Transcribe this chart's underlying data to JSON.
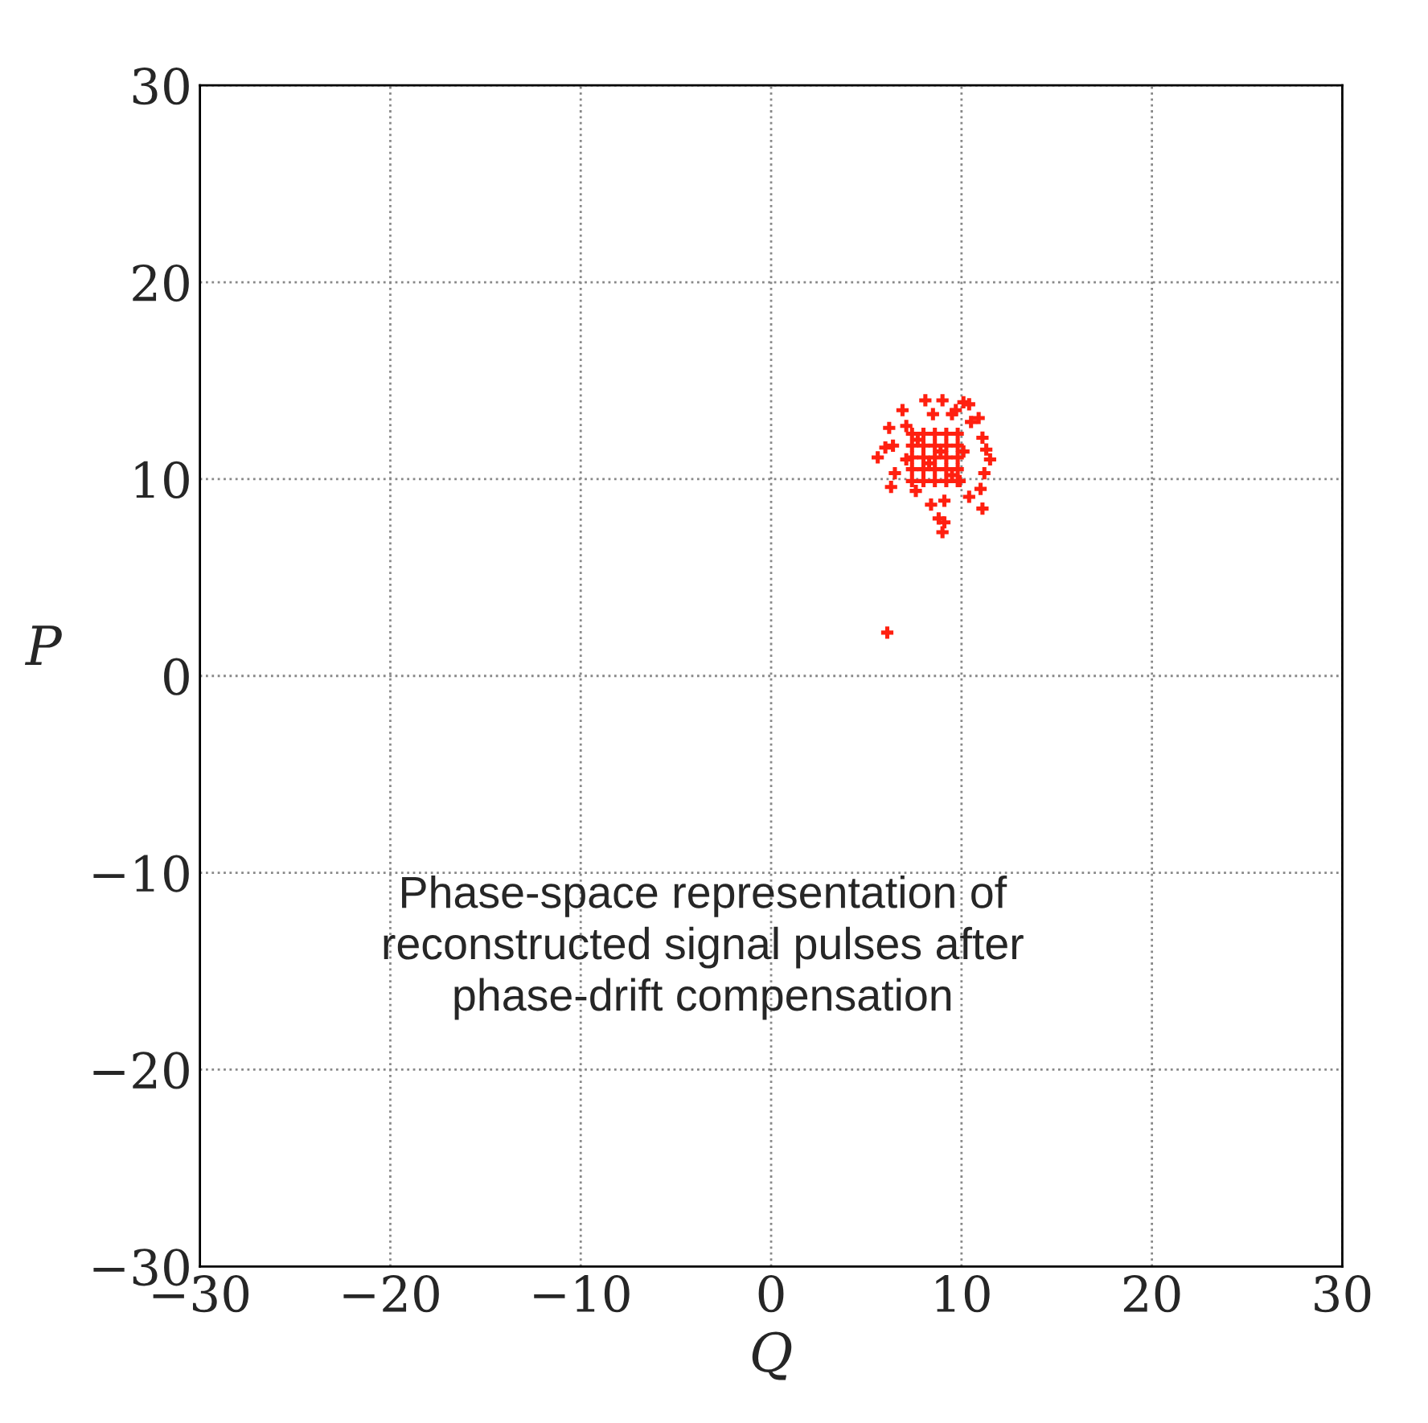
{
  "chart_data": {
    "type": "scatter",
    "xlabel": "Q",
    "ylabel": "P",
    "annotations": [
      "Phase-space representation of\nreconstructed signal pulses after\nphase-drift compensation"
    ],
    "x": [
      6.9,
      8.1,
      9.0,
      10.1,
      10.4,
      10.9,
      6.2,
      5.6,
      6.0,
      6.4,
      11.5,
      11.3,
      11.1,
      6.5,
      11.2,
      11.0,
      6.3,
      7.6,
      8.4,
      9.1,
      10.4,
      11.1,
      8.8,
      9.1,
      9.0,
      6.1,
      9.9,
      7.1,
      8.5,
      9.5,
      10.5,
      9.7,
      7.4,
      8.0,
      8.6,
      9.2,
      9.8,
      7.4,
      8.0,
      8.6,
      9.2,
      9.8,
      7.4,
      8.0,
      8.6,
      9.2,
      9.8,
      7.4,
      8.0,
      8.6,
      9.2,
      9.8,
      7.4,
      8.0,
      8.6,
      9.2,
      9.8,
      7.1,
      10.1,
      8.3,
      8.9,
      7.7,
      9.5
    ],
    "series": [
      {
        "color": "#ff2010",
        "values": [
          13.5,
          14.0,
          14.0,
          13.9,
          13.8,
          13.1,
          12.6,
          11.1,
          11.6,
          11.7,
          11.0,
          11.5,
          12.1,
          10.3,
          10.3,
          9.5,
          9.6,
          9.4,
          8.7,
          8.9,
          9.1,
          8.5,
          8.0,
          7.8,
          7.3,
          2.2,
          9.9,
          12.7,
          13.3,
          13.3,
          12.9,
          13.5,
          9.9,
          9.9,
          9.9,
          9.9,
          9.9,
          10.5,
          10.5,
          10.5,
          10.5,
          10.5,
          11.1,
          11.1,
          11.1,
          11.1,
          11.1,
          11.7,
          11.7,
          11.7,
          11.7,
          11.7,
          12.3,
          12.3,
          12.3,
          12.3,
          12.3,
          11.0,
          11.4,
          10.8,
          11.4,
          12.0,
          10.2
        ]
      }
    ],
    "xlim": [
      -30,
      30
    ],
    "ylim": [
      -30,
      30
    ],
    "xticks": [
      -30,
      -20,
      -10,
      0,
      10,
      20,
      30
    ],
    "yticks": [
      -30,
      -20,
      -10,
      0,
      10,
      20,
      30
    ],
    "grid": true,
    "marker": "cross",
    "legend": false
  }
}
